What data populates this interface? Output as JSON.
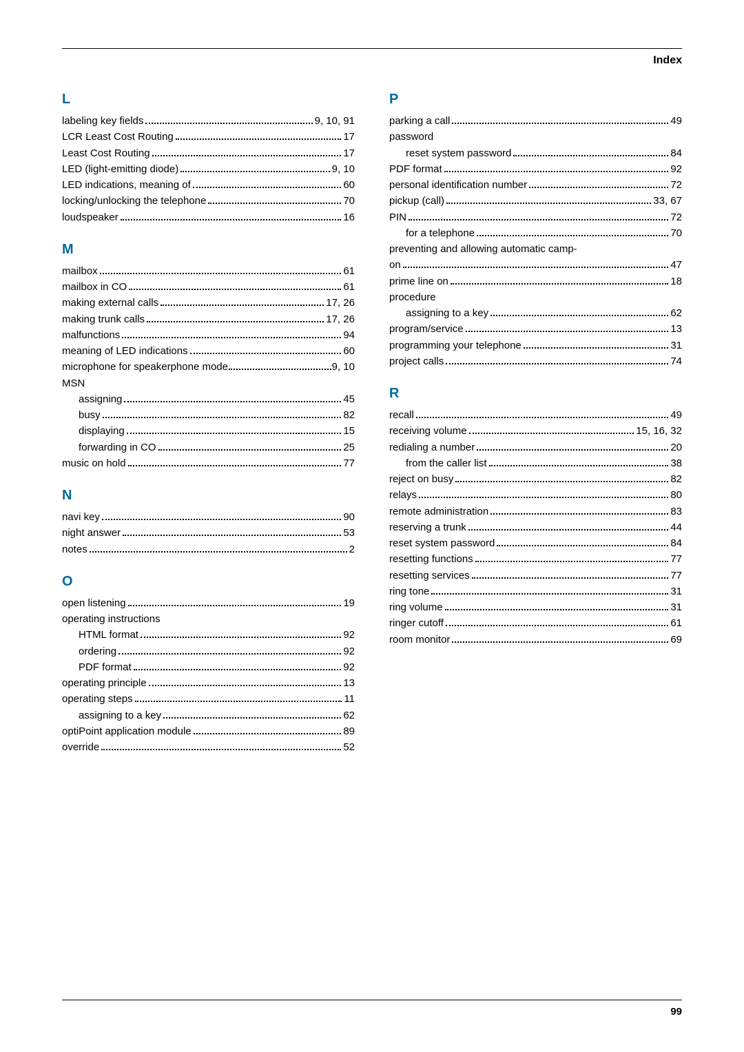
{
  "header": {
    "title": "Index"
  },
  "footer": {
    "page": "99"
  },
  "left": {
    "sections": [
      {
        "heading": "L",
        "entries": [
          {
            "label": "labeling key fields",
            "page": "9, 10, 91",
            "sub": false
          },
          {
            "label": "LCR Least Cost Routing",
            "page": "17",
            "sub": false
          },
          {
            "label": "Least Cost Routing",
            "page": "17",
            "sub": false
          },
          {
            "label": "LED (light-emitting diode)",
            "page": "9, 10",
            "sub": false
          },
          {
            "label": "LED indications, meaning of",
            "page": "60",
            "sub": false
          },
          {
            "label": "locking/unlocking the telephone",
            "page": "70",
            "sub": false
          },
          {
            "label": "loudspeaker",
            "page": "16",
            "sub": false
          }
        ]
      },
      {
        "heading": "M",
        "entries": [
          {
            "label": "mailbox",
            "page": "61",
            "sub": false
          },
          {
            "label": "mailbox in CO",
            "page": "61",
            "sub": false
          },
          {
            "label": "making external calls",
            "page": "17, 26",
            "sub": false
          },
          {
            "label": "making trunk calls",
            "page": "17, 26",
            "sub": false
          },
          {
            "label": "malfunctions",
            "page": "94",
            "sub": false
          },
          {
            "label": "meaning of LED indications",
            "page": "60",
            "sub": false
          },
          {
            "label": "microphone for speakerphone mode",
            "page": "9, 10",
            "sub": false,
            "tight": true
          },
          {
            "label": "MSN",
            "page": "",
            "sub": false,
            "nopage": true
          },
          {
            "label": "assigning",
            "page": "45",
            "sub": true
          },
          {
            "label": "busy",
            "page": "82",
            "sub": true
          },
          {
            "label": "displaying",
            "page": "15",
            "sub": true
          },
          {
            "label": "forwarding in CO",
            "page": "25",
            "sub": true
          },
          {
            "label": "music on hold",
            "page": "77",
            "sub": false
          }
        ]
      },
      {
        "heading": "N",
        "entries": [
          {
            "label": "navi key",
            "page": "90",
            "sub": false
          },
          {
            "label": "night answer",
            "page": "53",
            "sub": false
          },
          {
            "label": "notes",
            "page": "2",
            "sub": false
          }
        ]
      },
      {
        "heading": "O",
        "entries": [
          {
            "label": "open listening",
            "page": "19",
            "sub": false
          },
          {
            "label": "operating instructions",
            "page": "",
            "sub": false,
            "nopage": true
          },
          {
            "label": "HTML format",
            "page": "92",
            "sub": true
          },
          {
            "label": "ordering",
            "page": "92",
            "sub": true
          },
          {
            "label": "PDF format",
            "page": "92",
            "sub": true
          },
          {
            "label": "operating principle",
            "page": "13",
            "sub": false
          },
          {
            "label": "operating steps",
            "page": "11",
            "sub": false
          },
          {
            "label": "assigning to a key",
            "page": "62",
            "sub": true
          },
          {
            "label": "optiPoint application module",
            "page": "89",
            "sub": false
          },
          {
            "label": "override",
            "page": "52",
            "sub": false
          }
        ]
      }
    ]
  },
  "right": {
    "sections": [
      {
        "heading": "P",
        "entries": [
          {
            "label": "parking a call",
            "page": "49",
            "sub": false
          },
          {
            "label": "password",
            "page": "",
            "sub": false,
            "nopage": true
          },
          {
            "label": "reset system password",
            "page": "84",
            "sub": true
          },
          {
            "label": "PDF format",
            "page": "92",
            "sub": false
          },
          {
            "label": "personal identification number",
            "page": "72",
            "sub": false
          },
          {
            "label": "pickup (call)",
            "page": "33, 67",
            "sub": false
          },
          {
            "label": "PIN",
            "page": "72",
            "sub": false
          },
          {
            "label": "for a telephone",
            "page": "70",
            "sub": true
          },
          {
            "label": "preventing and allowing automatic camp-",
            "page": "",
            "sub": false,
            "nopage": true
          },
          {
            "label": "on",
            "page": "47",
            "sub": false
          },
          {
            "label": "prime line on",
            "page": "18",
            "sub": false
          },
          {
            "label": "procedure",
            "page": "",
            "sub": false,
            "nopage": true
          },
          {
            "label": "assigning to a key",
            "page": "62",
            "sub": true
          },
          {
            "label": "program/service",
            "page": "13",
            "sub": false
          },
          {
            "label": "programming your telephone",
            "page": "31",
            "sub": false
          },
          {
            "label": "project calls",
            "page": "74",
            "sub": false
          }
        ]
      },
      {
        "heading": "R",
        "entries": [
          {
            "label": "recall",
            "page": "49",
            "sub": false
          },
          {
            "label": "receiving volume",
            "page": "15, 16, 32",
            "sub": false
          },
          {
            "label": "redialing a number",
            "page": "20",
            "sub": false
          },
          {
            "label": "from the caller list",
            "page": "38",
            "sub": true
          },
          {
            "label": "reject on busy",
            "page": "82",
            "sub": false
          },
          {
            "label": "relays",
            "page": "80",
            "sub": false
          },
          {
            "label": "remote administration",
            "page": "83",
            "sub": false
          },
          {
            "label": "reserving a trunk",
            "page": "44",
            "sub": false
          },
          {
            "label": "reset system password",
            "page": "84",
            "sub": false
          },
          {
            "label": "resetting functions",
            "page": "77",
            "sub": false
          },
          {
            "label": "resetting services",
            "page": "77",
            "sub": false
          },
          {
            "label": "ring tone",
            "page": "31",
            "sub": false
          },
          {
            "label": "ring volume",
            "page": "31",
            "sub": false
          },
          {
            "label": "ringer cutoff",
            "page": "61",
            "sub": false
          },
          {
            "label": "room monitor",
            "page": "69",
            "sub": false
          }
        ]
      }
    ]
  }
}
